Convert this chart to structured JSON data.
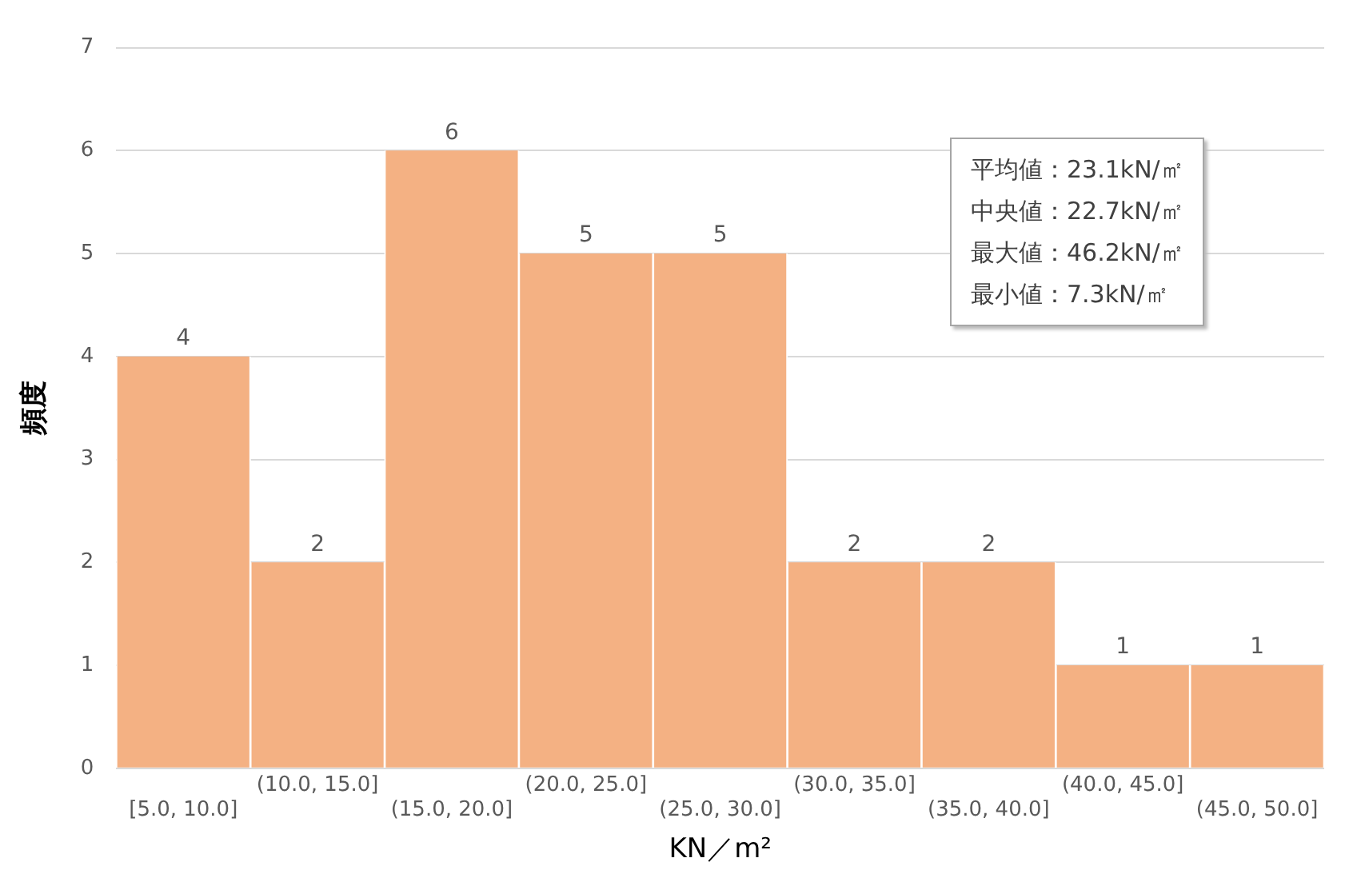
{
  "chart_data": {
    "type": "bar",
    "categories": [
      "[5.0, 10.0]",
      "(10.0, 15.0]",
      "(15.0, 20.0]",
      "(20.0, 25.0]",
      "(25.0, 30.0]",
      "(30.0, 35.0]",
      "(35.0, 40.0]",
      "(40.0, 45.0]",
      "(45.0, 50.0]"
    ],
    "values": [
      4,
      2,
      6,
      5,
      5,
      2,
      2,
      1,
      1
    ],
    "color": "#f4b183",
    "xlabel": "KN／m²",
    "ylabel": "頻度",
    "ylim": [
      0,
      7
    ],
    "yticks": [
      0,
      1,
      2,
      3,
      4,
      5,
      6,
      7
    ],
    "grid": "y",
    "data_labels": true,
    "legend": false,
    "annotations": [
      "平均値：23.1kN/㎡",
      "中央値：22.7kN/㎡",
      "最大値：46.2kN/㎡",
      "最小値：7.3kN/㎡"
    ]
  }
}
